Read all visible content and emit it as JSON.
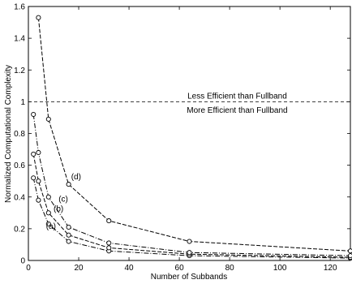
{
  "chart_data": {
    "type": "line",
    "title": "",
    "xlabel": "Number of Subbands",
    "ylabel": "Normalized Computational Complexity",
    "xlim": [
      0,
      128
    ],
    "ylim": [
      0,
      1.6
    ],
    "x_ticks": [
      0,
      20,
      40,
      60,
      80,
      100,
      120
    ],
    "y_ticks": [
      0,
      0.2,
      0.4,
      0.6,
      0.8,
      1,
      1.2,
      1.4,
      1.6
    ],
    "x_tick_labels": [
      "0",
      "20",
      "40",
      "60",
      "80",
      "100",
      "120"
    ],
    "y_tick_labels": [
      "0",
      "0.2",
      "0.4",
      "0.6",
      "0.8",
      "1",
      "1.2",
      "1.4",
      "1.6"
    ],
    "grid": false,
    "reference_line": {
      "y": 1.0,
      "style": "dashed"
    },
    "annotations": [
      {
        "text": "Less Efficient than Fullband",
        "x": 83,
        "y": 1.02
      },
      {
        "text": "More Efficient than Fullband",
        "x": 83,
        "y": 0.93
      }
    ],
    "series": [
      {
        "name": "(a)",
        "label_at": [
          7,
          0.2
        ],
        "x": [
          2,
          4,
          8,
          16,
          32,
          64,
          128
        ],
        "y": [
          0.52,
          0.38,
          0.23,
          0.12,
          0.06,
          0.03,
          0.015
        ]
      },
      {
        "name": "(b)",
        "label_at": [
          10,
          0.31
        ],
        "x": [
          2,
          4,
          8,
          16,
          32,
          64,
          128
        ],
        "y": [
          0.67,
          0.5,
          0.3,
          0.16,
          0.08,
          0.04,
          0.02
        ]
      },
      {
        "name": "(c)",
        "label_at": [
          12,
          0.37
        ],
        "x": [
          2,
          4,
          8,
          16,
          32,
          64,
          128
        ],
        "y": [
          0.92,
          0.68,
          0.4,
          0.21,
          0.11,
          0.05,
          0.03
        ]
      },
      {
        "name": "(d)",
        "label_at": [
          17,
          0.51
        ],
        "x": [
          4,
          8,
          16,
          32,
          64,
          128
        ],
        "y": [
          1.53,
          0.89,
          0.48,
          0.25,
          0.12,
          0.06
        ]
      }
    ]
  }
}
